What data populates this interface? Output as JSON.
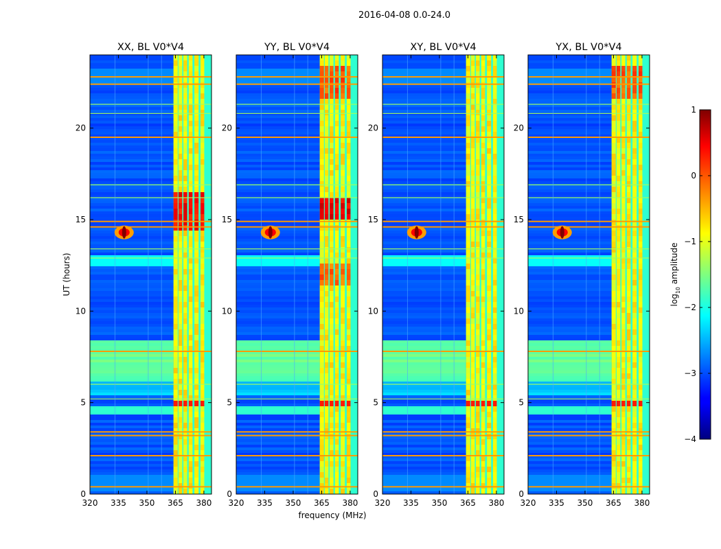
{
  "figure": {
    "suptitle": "2016-04-08 0.0-24.0"
  },
  "chart_data": {
    "type": "heatmap",
    "panels": [
      {
        "title": "XX, BL V0*V4",
        "pol": "XX"
      },
      {
        "title": "YY, BL V0*V4",
        "pol": "YY"
      },
      {
        "title": "XY, BL V0*V4",
        "pol": "XY"
      },
      {
        "title": "YX, BL V0*V4",
        "pol": "YX"
      }
    ],
    "xlabel": "frequency (MHz)",
    "ylabel": "UT (hours)",
    "xlim": [
      320,
      384
    ],
    "ylim": [
      0,
      24
    ],
    "xticks": [
      320,
      335,
      350,
      365,
      380
    ],
    "xtick_labels": [
      "320",
      "335",
      "350",
      "365",
      "380"
    ],
    "yticks": [
      0,
      5,
      10,
      15,
      20
    ],
    "ytick_labels": [
      "0",
      "5",
      "10",
      "15",
      "20"
    ],
    "colorbar": {
      "label_main": "log",
      "label_sub": "10",
      "label_rest": " amplitude",
      "range": [
        -4,
        1
      ],
      "ticks": [
        1,
        0,
        -1,
        -2,
        -3,
        -4
      ],
      "tick_labels": [
        "1",
        "0",
        "−1",
        "−2",
        "−3",
        "−4"
      ],
      "colormap": "jet"
    },
    "features": {
      "strong_band_mhz": [
        364,
        380
      ],
      "burst": {
        "freq_mhz": 338,
        "ut_hours": 14.3
      },
      "rfi_rows_ut": [
        0.4,
        2.1,
        3.2,
        3.4,
        7.8,
        14.6,
        14.9,
        19.5,
        22.4,
        22.8
      ]
    },
    "colors": {
      "background": "#0000c8",
      "rfi_line": "#ff9a00",
      "band": "#fff200"
    }
  }
}
